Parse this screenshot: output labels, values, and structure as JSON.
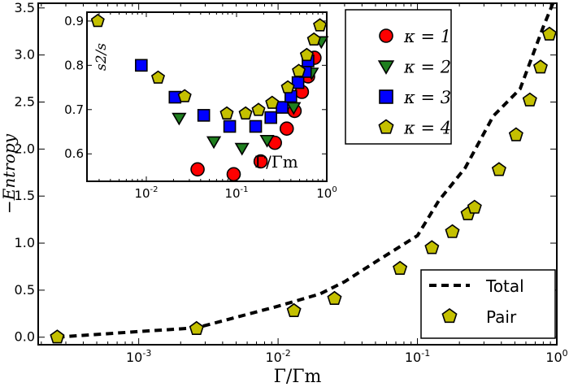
{
  "chart_data": [
    {
      "type": "line",
      "xlabel": "Γ/Γm",
      "ylabel": "−Entropy",
      "xscale": "log",
      "xlim": [
        0.00019,
        1.0
      ],
      "ylim": [
        -0.08,
        3.55
      ],
      "x_ticks": [
        {
          "base": "10",
          "exp": "-3",
          "value": 0.001
        },
        {
          "base": "10",
          "exp": "-2",
          "value": 0.01
        },
        {
          "base": "10",
          "exp": "-1",
          "value": 0.1
        },
        {
          "base": "10",
          "exp": "0",
          "value": 1
        }
      ],
      "y_ticks": [
        "0.0",
        "0.5",
        "1.0",
        "1.5",
        "2.0",
        "2.5",
        "3.0",
        "3.5"
      ],
      "grid": false,
      "legend_position": "lower-right",
      "series": [
        {
          "name": "Total",
          "style": "dashed-line",
          "color": "#000000",
          "x": [
            0.00026,
            0.001,
            0.0026,
            0.01,
            0.02,
            0.03,
            0.05,
            0.1,
            0.142,
            0.22,
            0.35,
            0.546,
            0.8,
            1.0
          ],
          "y": [
            0.0,
            0.06,
            0.1,
            0.33,
            0.46,
            0.59,
            0.8,
            1.08,
            1.45,
            1.8,
            2.35,
            2.64,
            3.3,
            3.65
          ]
        },
        {
          "name": "Pair",
          "style": "pentagon-marker",
          "color": "#c4c000",
          "x": [
            0.00026,
            0.0026,
            0.013,
            0.0254,
            0.075,
            0.127,
            0.178,
            0.23,
            0.257,
            0.385,
            0.51,
            0.64,
            0.764,
            0.885
          ],
          "y": [
            0.0,
            0.09,
            0.28,
            0.41,
            0.73,
            0.95,
            1.12,
            1.31,
            1.38,
            1.78,
            2.15,
            2.52,
            2.87,
            3.22
          ]
        }
      ]
    },
    {
      "type": "scatter",
      "inset": true,
      "xlabel": "Γ/Γm",
      "ylabel": "s2/s",
      "xscale": "log",
      "xlim": [
        0.0022,
        1.0
      ],
      "ylim": [
        0.538,
        0.92
      ],
      "x_ticks": [
        {
          "base": "10",
          "exp": "-2",
          "value": 0.01
        },
        {
          "base": "10",
          "exp": "-1",
          "value": 0.1
        },
        {
          "base": "10",
          "exp": "0",
          "value": 1
        }
      ],
      "y_ticks": [
        "0.6",
        "0.7",
        "0.8",
        "0.9"
      ],
      "legend_position": "outside-right",
      "series": [
        {
          "name": "κ = 1",
          "marker": "circle",
          "color": "#ff0000",
          "x": [
            0.037,
            0.093,
            0.185,
            0.266,
            0.36,
            0.44,
            0.53,
            0.62,
            0.73
          ],
          "y": [
            0.565,
            0.554,
            0.583,
            0.625,
            0.657,
            0.697,
            0.74,
            0.775,
            0.817
          ]
        },
        {
          "name": "κ = 2",
          "marker": "triangle-down",
          "color": "#1f7f1f",
          "x": [
            0.0231,
            0.056,
            0.115,
            0.218,
            0.43,
            0.68,
            0.87
          ],
          "y": [
            0.681,
            0.628,
            0.613,
            0.631,
            0.705,
            0.783,
            0.854
          ]
        },
        {
          "name": "κ = 3",
          "marker": "square",
          "color": "#0000ff",
          "x": [
            0.0088,
            0.0208,
            0.0433,
            0.084,
            0.163,
            0.24,
            0.32,
            0.4,
            0.48,
            0.58,
            0.62
          ],
          "y": [
            0.8,
            0.728,
            0.687,
            0.662,
            0.662,
            0.682,
            0.705,
            0.73,
            0.761,
            0.786,
            0.81
          ]
        },
        {
          "name": "κ = 4",
          "marker": "pentagon",
          "color": "#c4c000",
          "x": [
            0.0029,
            0.0135,
            0.0266,
            0.078,
            0.126,
            0.175,
            0.248,
            0.37,
            0.49,
            0.6,
            0.72,
            0.84
          ],
          "y": [
            0.9,
            0.772,
            0.73,
            0.691,
            0.691,
            0.699,
            0.715,
            0.75,
            0.787,
            0.823,
            0.858,
            0.89
          ]
        }
      ]
    }
  ],
  "legend_kappa": [
    {
      "label": "κ = 1",
      "marker": "circle",
      "color": "#ff0000"
    },
    {
      "label": "κ = 2",
      "marker": "triangle-down",
      "color": "#1f7f1f"
    },
    {
      "label": "κ = 3",
      "marker": "square",
      "color": "#0000ff"
    },
    {
      "label": "κ = 4",
      "marker": "pentagon",
      "color": "#c4c000"
    }
  ],
  "legend_main": [
    {
      "label": "Total",
      "marker": "dashed-line"
    },
    {
      "label": "Pair",
      "marker": "pentagon",
      "color": "#c4c000"
    }
  ]
}
